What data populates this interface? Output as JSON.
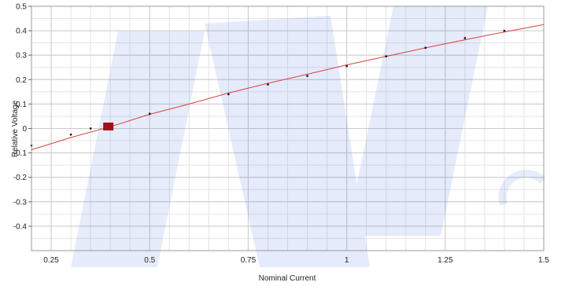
{
  "chart_data": {
    "type": "scatter",
    "title": "",
    "xlabel": "Nominal Current",
    "ylabel": "Relative Voltage",
    "xlim": [
      0.2,
      1.5
    ],
    "ylim": [
      -0.5,
      0.5
    ],
    "grid": true,
    "x_ticks": [
      {
        "value": 0.25,
        "label": "0.25"
      },
      {
        "value": 0.5,
        "label": "0.5"
      },
      {
        "value": 0.75,
        "label": "0.75"
      },
      {
        "value": 1,
        "label": "1"
      },
      {
        "value": 1.25,
        "label": "1.25"
      },
      {
        "value": 1.5,
        "label": "1.5"
      }
    ],
    "y_ticks": [
      {
        "value": 0.5,
        "label": "0.5"
      },
      {
        "value": 0.4,
        "label": "0.4"
      },
      {
        "value": 0.3,
        "label": "0.3"
      },
      {
        "value": 0.2,
        "label": "0.2"
      },
      {
        "value": 0.1,
        "label": "0.1"
      },
      {
        "value": 0,
        "label": "0"
      },
      {
        "value": -0.1,
        "label": "-0.1"
      },
      {
        "value": -0.2,
        "label": "-0.2"
      },
      {
        "value": -0.3,
        "label": "-0.3"
      },
      {
        "value": -0.4,
        "label": "-0.4"
      }
    ],
    "points": [
      {
        "x": 0.2,
        "y": -0.07
      },
      {
        "x": 0.3,
        "y": -0.025
      },
      {
        "x": 0.35,
        "y": 0.0
      },
      {
        "x": 0.5,
        "y": 0.06
      },
      {
        "x": 0.7,
        "y": 0.14
      },
      {
        "x": 0.8,
        "y": 0.18
      },
      {
        "x": 0.9,
        "y": 0.215
      },
      {
        "x": 1.0,
        "y": 0.255
      },
      {
        "x": 1.1,
        "y": 0.295
      },
      {
        "x": 1.2,
        "y": 0.33
      },
      {
        "x": 1.3,
        "y": 0.37
      },
      {
        "x": 1.4,
        "y": 0.4
      }
    ],
    "fit_line": [
      {
        "x": 0.2,
        "y": -0.087
      },
      {
        "x": 0.3,
        "y": -0.037
      },
      {
        "x": 0.4,
        "y": 0.007
      },
      {
        "x": 0.5,
        "y": 0.058
      },
      {
        "x": 0.6,
        "y": 0.1
      },
      {
        "x": 0.7,
        "y": 0.145
      },
      {
        "x": 0.8,
        "y": 0.185
      },
      {
        "x": 0.9,
        "y": 0.222
      },
      {
        "x": 1.0,
        "y": 0.26
      },
      {
        "x": 1.1,
        "y": 0.295
      },
      {
        "x": 1.2,
        "y": 0.33
      },
      {
        "x": 1.3,
        "y": 0.363
      },
      {
        "x": 1.4,
        "y": 0.395
      },
      {
        "x": 1.5,
        "y": 0.425
      }
    ],
    "highlight_point": {
      "x": 0.395,
      "y": 0.008
    },
    "colors": {
      "fit_line": "#d94040",
      "points": "#111111",
      "highlight": "#a01018",
      "grid_minor": "#e4e4e4",
      "grid_major": "#cccccc",
      "watermark": "#1f4fd6"
    }
  }
}
